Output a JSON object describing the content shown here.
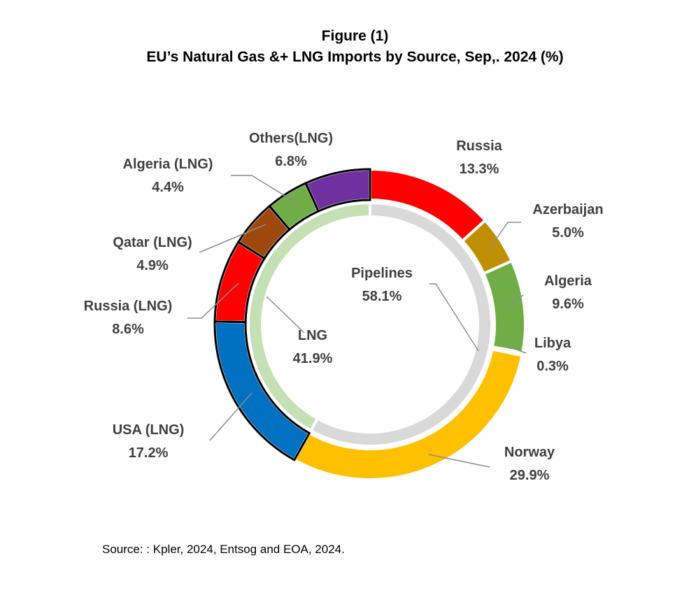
{
  "title_line1": "Figure (1)",
  "title_line2": "EU’s Natural Gas &+ LNG Imports by Source, Sep,. 2024 (%)",
  "source": "Source: : Kpler, 2024, Entsog and EOA, 2024.",
  "chart_data": {
    "type": "pie",
    "subtype": "double-donut",
    "inner_ring": [
      {
        "label": "Pipelines",
        "value_label": "58.1%",
        "value": 58.1,
        "color": "#d9d9d9"
      },
      {
        "label": "LNG",
        "value_label": "41.9%",
        "value": 41.9,
        "color": "#c5e0b4"
      }
    ],
    "outer_ring": [
      {
        "label": "Russia",
        "value_label": "13.3%",
        "value": 13.3,
        "color": "#ff0000"
      },
      {
        "label": "Azerbaijan",
        "value_label": "5.0%",
        "value": 5.0,
        "color": "#bf8f00"
      },
      {
        "label": "Algeria",
        "value_label": "9.6%",
        "value": 9.6,
        "color": "#70ad47"
      },
      {
        "label": "Libya",
        "value_label": "0.3%",
        "value": 0.3,
        "color": "#70ad47"
      },
      {
        "label": "Norway",
        "value_label": "29.9%",
        "value": 29.9,
        "color": "#ffc000"
      },
      {
        "label": "USA (LNG)",
        "value_label": "17.2%",
        "value": 17.2,
        "color": "#0070c0"
      },
      {
        "label": "Russia (LNG)",
        "value_label": "8.6%",
        "value": 8.6,
        "color": "#ff0000"
      },
      {
        "label": "Qatar (LNG)",
        "value_label": "4.9%",
        "value": 4.9,
        "color": "#9e480e"
      },
      {
        "label": "Algeria  (LNG)",
        "value_label": "4.4%",
        "value": 4.4,
        "color": "#70ad47"
      },
      {
        "label": "Others(LNG)",
        "value_label": "6.8%",
        "value": 6.8,
        "color": "#7030a0"
      }
    ]
  }
}
